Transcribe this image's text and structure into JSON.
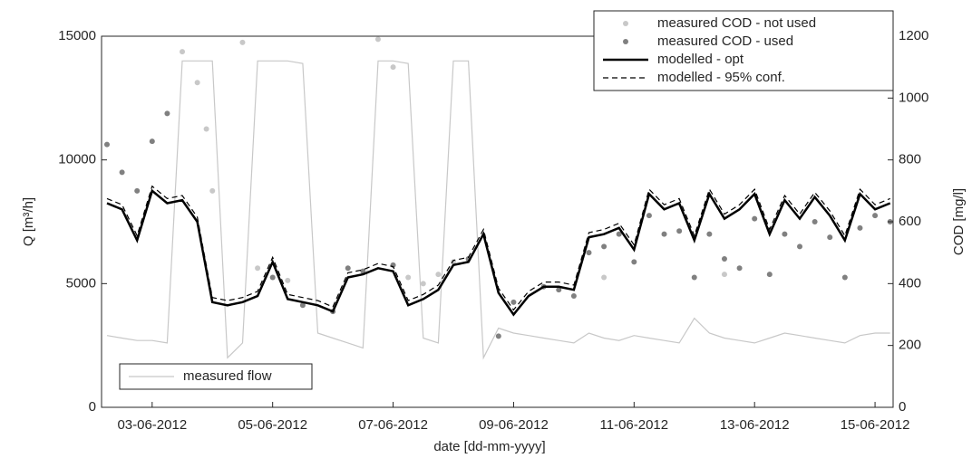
{
  "chart_data": {
    "type": "combo",
    "xlabel": "date [dd-mm-yyyy]",
    "ylabel": "Q [m³/h]",
    "y2label": "COD [mg/l]",
    "xlim": [
      2.16,
      15.3
    ],
    "xticks": [
      {
        "value": 3,
        "label": "03-06-2012"
      },
      {
        "value": 5,
        "label": "05-06-2012"
      },
      {
        "value": 7,
        "label": "07-06-2012"
      },
      {
        "value": 9,
        "label": "09-06-2012"
      },
      {
        "value": 11,
        "label": "11-06-2012"
      },
      {
        "value": 13,
        "label": "13-06-2012"
      },
      {
        "value": 15,
        "label": "15-06-2012"
      }
    ],
    "ylim": [
      0,
      15000
    ],
    "yticks": [
      0,
      5000,
      10000,
      15000
    ],
    "y2lim": [
      0,
      1200
    ],
    "y2ticks": [
      0,
      200,
      400,
      600,
      800,
      1000,
      1200
    ],
    "series": [
      {
        "name": "measured flow",
        "axis": "y",
        "style": "line",
        "legend": "flow",
        "color": "#c8c8c8",
        "x": [
          2.25,
          2.5,
          2.75,
          3,
          3.25,
          3.5,
          3.75,
          4,
          4.25,
          4.5,
          4.75,
          5,
          5.25,
          5.5,
          5.75,
          6,
          6.25,
          6.5,
          6.75,
          7,
          7.25,
          7.5,
          7.75,
          8,
          8.25,
          8.5,
          8.75,
          9,
          9.25,
          9.5,
          9.75,
          10,
          10.25,
          10.5,
          10.75,
          11,
          11.25,
          11.5,
          11.75,
          12,
          12.25,
          12.5,
          12.75,
          13,
          13.25,
          13.5,
          13.75,
          14,
          14.25,
          14.5,
          14.75,
          15,
          15.25
        ],
        "values": [
          2900,
          2800,
          2700,
          2700,
          2600,
          14000,
          14000,
          14000,
          2000,
          2600,
          14000,
          14000,
          14000,
          13900,
          3000,
          2800,
          2600,
          2400,
          14000,
          14000,
          13900,
          2800,
          2600,
          14000,
          14000,
          2000,
          3200,
          3000,
          2900,
          2800,
          2700,
          2600,
          3000,
          2800,
          2700,
          2900,
          2800,
          2700,
          2600,
          3600,
          3000,
          2800,
          2700,
          2600,
          2800,
          3000,
          2900,
          2800,
          2700,
          2600,
          2900,
          3000,
          3000
        ]
      },
      {
        "name": "measured COD - not used",
        "axis": "y2",
        "style": "points",
        "legend": "main",
        "color": "#c8c8c8",
        "x": [
          3.5,
          3.75,
          3.9,
          4,
          4.5,
          4.75,
          5.25,
          6.75,
          7,
          7.25,
          7.5,
          7.75,
          8,
          10.5,
          12.5
        ],
        "values": [
          1150,
          1050,
          900,
          700,
          1180,
          450,
          410,
          1190,
          1100,
          420,
          400,
          430,
          470,
          420,
          430
        ]
      },
      {
        "name": "measured COD - used",
        "axis": "y2",
        "style": "points",
        "legend": "main",
        "color": "#808080",
        "x": [
          2.25,
          2.5,
          2.75,
          3,
          3.25,
          5,
          5.5,
          6,
          6.25,
          6.5,
          7,
          8.25,
          8.75,
          9,
          9.5,
          9.75,
          10,
          10.25,
          10.5,
          10.75,
          11,
          11.25,
          11.5,
          11.75,
          12,
          12.25,
          12.5,
          12.75,
          13,
          13.25,
          13.5,
          13.75,
          14,
          14.25,
          14.5,
          14.75,
          15,
          15.25
        ],
        "values": [
          850,
          760,
          700,
          860,
          950,
          420,
          330,
          310,
          450,
          440,
          460,
          480,
          230,
          340,
          390,
          380,
          360,
          500,
          520,
          560,
          470,
          620,
          560,
          570,
          420,
          560,
          480,
          450,
          610,
          430,
          560,
          520,
          600,
          550,
          420,
          580,
          620,
          600
        ]
      },
      {
        "name": "modelled - opt",
        "axis": "y2",
        "style": "line",
        "legend": "main",
        "color": "#000000",
        "x": [
          2.25,
          2.5,
          2.75,
          3,
          3.25,
          3.5,
          3.75,
          4,
          4.25,
          4.5,
          4.75,
          5,
          5.25,
          5.5,
          5.75,
          6,
          6.25,
          6.5,
          6.75,
          7,
          7.25,
          7.5,
          7.75,
          8,
          8.25,
          8.5,
          8.75,
          9,
          9.25,
          9.5,
          9.75,
          10,
          10.25,
          10.5,
          10.75,
          11,
          11.25,
          11.5,
          11.75,
          12,
          12.25,
          12.5,
          12.75,
          13,
          13.25,
          13.5,
          13.75,
          14,
          14.25,
          14.5,
          14.75,
          15,
          15.25
        ],
        "values": [
          660,
          640,
          540,
          700,
          660,
          670,
          600,
          340,
          330,
          340,
          360,
          470,
          350,
          340,
          330,
          310,
          420,
          430,
          450,
          440,
          330,
          350,
          380,
          460,
          470,
          560,
          370,
          300,
          360,
          390,
          390,
          380,
          550,
          560,
          580,
          510,
          690,
          640,
          660,
          540,
          690,
          610,
          640,
          690,
          560,
          670,
          610,
          680,
          620,
          540,
          690,
          640,
          660
        ]
      },
      {
        "name": "modelled - 95% conf.",
        "axis": "y2",
        "style": "dashed",
        "legend": "main",
        "color": "#000000",
        "x": [
          2.25,
          2.5,
          2.75,
          3,
          3.25,
          3.5,
          3.75,
          4,
          4.25,
          4.5,
          4.75,
          5,
          5.25,
          5.5,
          5.75,
          6,
          6.25,
          6.5,
          6.75,
          7,
          7.25,
          7.5,
          7.75,
          8,
          8.25,
          8.5,
          8.75,
          9,
          9.25,
          9.5,
          9.75,
          10,
          10.25,
          10.5,
          10.75,
          11,
          11.25,
          11.5,
          11.75,
          12,
          12.25,
          12.5,
          12.75,
          13,
          13.25,
          13.5,
          13.75,
          14,
          14.25,
          14.5,
          14.75,
          15,
          15.25
        ],
        "values": [
          675,
          655,
          555,
          715,
          675,
          685,
          615,
          355,
          345,
          355,
          375,
          485,
          365,
          355,
          345,
          325,
          435,
          445,
          465,
          455,
          345,
          365,
          395,
          475,
          485,
          575,
          385,
          315,
          375,
          405,
          405,
          395,
          565,
          575,
          595,
          525,
          705,
          655,
          675,
          555,
          705,
          625,
          655,
          705,
          575,
          685,
          625,
          695,
          635,
          555,
          705,
          655,
          675
        ]
      }
    ]
  }
}
